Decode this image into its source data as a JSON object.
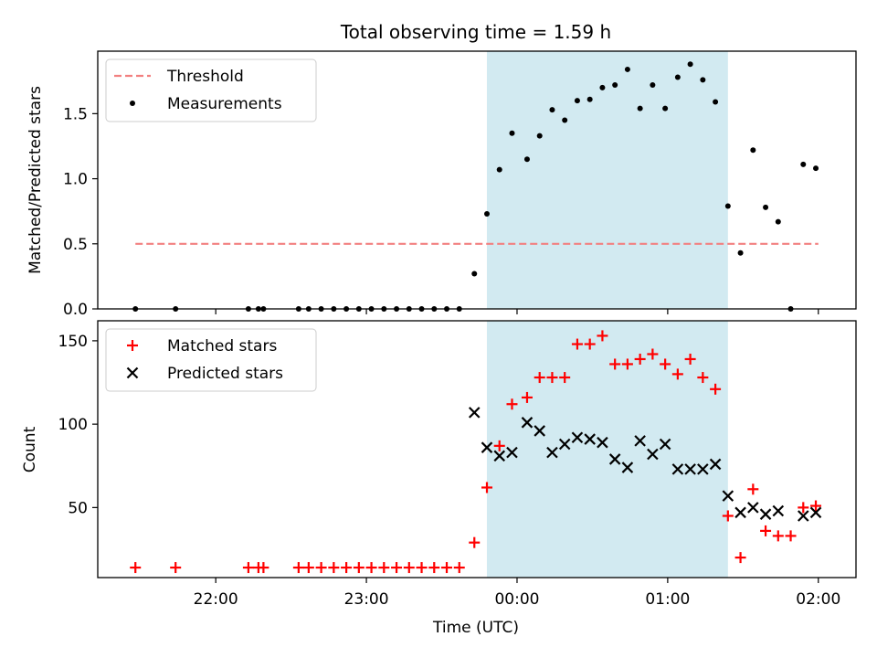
{
  "title": "Total observing time = 1.59 h",
  "colors": {
    "threshold": "#f28080",
    "measurement": "#000000",
    "matched": "#ff0000",
    "predicted": "#000000",
    "observing_window": "#add8e6"
  },
  "chart_data": [
    {
      "type": "scatter",
      "panel": "top",
      "title": "Total observing time = 1.59 h",
      "xlabel": "",
      "ylabel": "Matched/Predicted stars",
      "x_unit": "hours UTC",
      "xlim": [
        "21:13",
        "02:15"
      ],
      "ylim": [
        0,
        1.98
      ],
      "yticks": [
        "0.0",
        "0.5",
        "1.0",
        "1.5"
      ],
      "yticks_values": [
        0,
        0.5,
        1.0,
        1.5
      ],
      "shaded_region": [
        "23:48",
        "01:24"
      ],
      "legend": {
        "placement": "top-left",
        "entries": [
          "Threshold",
          "Measurements"
        ]
      },
      "series": [
        {
          "name": "Threshold",
          "style": "dashed-line",
          "x": [
            "21:28",
            "02:00"
          ],
          "y": [
            0.5,
            0.5
          ]
        },
        {
          "name": "Measurements",
          "style": "dot",
          "x": [
            "21:28",
            "21:44",
            "22:13",
            "22:17",
            "22:19",
            "22:33",
            "22:37",
            "22:42",
            "22:47",
            "22:52",
            "22:57",
            "23:02",
            "23:07",
            "23:12",
            "23:17",
            "23:22",
            "23:27",
            "23:32",
            "23:37",
            "23:43",
            "23:48",
            "23:53",
            "23:58",
            "24:04",
            "24:09",
            "24:14",
            "24:19",
            "24:24",
            "24:29",
            "24:34",
            "24:39",
            "24:44",
            "24:49",
            "24:54",
            "24:59",
            "25:04",
            "25:09",
            "25:14",
            "25:19",
            "25:24",
            "25:29",
            "25:34",
            "25:39",
            "25:44",
            "25:49",
            "25:54",
            "25:59"
          ],
          "y": [
            0,
            0,
            0,
            0,
            0,
            0,
            0,
            0,
            0,
            0,
            0,
            0,
            0,
            0,
            0,
            0,
            0,
            0,
            0,
            0.27,
            0.73,
            1.07,
            1.35,
            1.15,
            1.33,
            1.53,
            1.45,
            1.6,
            1.61,
            1.7,
            1.72,
            1.84,
            1.54,
            1.72,
            1.54,
            1.78,
            1.88,
            1.76,
            1.59,
            0.79,
            0.43,
            1.22,
            0.78,
            0.67,
            0,
            1.11,
            1.08
          ]
        }
      ]
    },
    {
      "type": "scatter",
      "panel": "bottom",
      "xlabel": "Time (UTC)",
      "ylabel": "Count",
      "xlim": [
        "21:13",
        "02:15"
      ],
      "ylim": [
        8,
        162
      ],
      "xticks": [
        "22:00",
        "23:00",
        "00:00",
        "01:00",
        "02:00"
      ],
      "yticks": [
        "50",
        "100",
        "150"
      ],
      "yticks_values": [
        50,
        100,
        150
      ],
      "shaded_region": [
        "23:48",
        "01:24"
      ],
      "legend": {
        "placement": "top-left",
        "entries": [
          "Matched stars",
          "Predicted stars"
        ]
      },
      "series": [
        {
          "name": "Matched stars",
          "marker": "+",
          "x": [
            "21:28",
            "21:44",
            "22:13",
            "22:17",
            "22:19",
            "22:33",
            "22:37",
            "22:42",
            "22:47",
            "22:52",
            "22:57",
            "23:02",
            "23:07",
            "23:12",
            "23:17",
            "23:22",
            "23:27",
            "23:32",
            "23:37",
            "23:43",
            "23:48",
            "23:53",
            "23:58",
            "24:04",
            "24:09",
            "24:14",
            "24:19",
            "24:24",
            "24:29",
            "24:34",
            "24:39",
            "24:44",
            "24:49",
            "24:54",
            "24:59",
            "25:04",
            "25:09",
            "25:14",
            "25:19",
            "25:24",
            "25:29",
            "25:34",
            "25:39",
            "25:44",
            "25:49",
            "25:54",
            "25:59"
          ],
          "y": [
            14,
            14,
            14,
            14,
            14,
            14,
            14,
            14,
            14,
            14,
            14,
            14,
            14,
            14,
            14,
            14,
            14,
            14,
            14,
            29,
            62,
            87,
            112,
            116,
            128,
            128,
            128,
            148,
            148,
            153,
            136,
            136,
            139,
            142,
            136,
            130,
            139,
            128,
            121,
            45,
            20,
            61,
            36,
            33,
            33,
            50,
            51
          ]
        },
        {
          "name": "Predicted stars",
          "marker": "x",
          "x": [
            "23:43",
            "23:48",
            "23:53",
            "23:58",
            "24:04",
            "24:09",
            "24:14",
            "24:19",
            "24:24",
            "24:29",
            "24:34",
            "24:39",
            "24:44",
            "24:49",
            "24:54",
            "24:59",
            "25:04",
            "25:09",
            "25:14",
            "25:19",
            "25:24",
            "25:29",
            "25:34",
            "25:39",
            "25:44",
            "25:54",
            "25:59"
          ],
          "y": [
            107,
            86,
            81,
            83,
            101,
            96,
            83,
            88,
            92,
            91,
            89,
            79,
            74,
            90,
            82,
            88,
            73,
            73,
            73,
            76,
            57,
            47,
            50,
            46,
            48,
            45,
            47
          ]
        }
      ]
    }
  ]
}
